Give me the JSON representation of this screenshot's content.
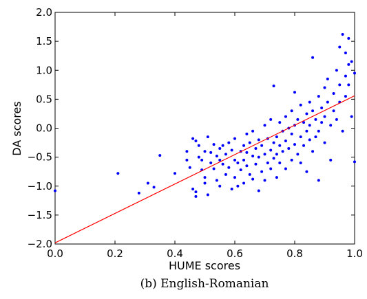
{
  "chart_data": {
    "type": "scatter",
    "title": "",
    "xlabel": "HUME scores",
    "ylabel": "DA scores",
    "caption": "(b) English-Romanian",
    "xlim": [
      0.0,
      1.0
    ],
    "ylim": [
      -2.0,
      2.0
    ],
    "xticks": [
      "0.0",
      "0.2",
      "0.4",
      "0.6",
      "0.8",
      "1.0"
    ],
    "yticks": [
      "−2.0",
      "−1.5",
      "−1.0",
      "−0.5",
      "0.0",
      "0.5",
      "1.0",
      "1.5",
      "2.0"
    ],
    "grid": false,
    "legend": "none",
    "colors": {
      "points": "#0000ff",
      "fit_line": "#ff0000"
    },
    "fit_line": {
      "x": [
        0.0,
        1.0
      ],
      "y": [
        -1.98,
        0.56
      ]
    },
    "series": [
      {
        "points": [
          [
            0.0,
            -1.08
          ],
          [
            0.21,
            -0.78
          ],
          [
            0.28,
            -1.12
          ],
          [
            0.31,
            -0.95
          ],
          [
            0.33,
            -1.02
          ],
          [
            0.35,
            -0.47
          ],
          [
            0.4,
            -0.78
          ],
          [
            0.44,
            -0.55
          ],
          [
            0.44,
            -0.4
          ],
          [
            0.45,
            -0.68
          ],
          [
            0.46,
            -1.05
          ],
          [
            0.46,
            -0.18
          ],
          [
            0.47,
            -0.22
          ],
          [
            0.47,
            -1.1
          ],
          [
            0.47,
            -1.18
          ],
          [
            0.48,
            -0.5
          ],
          [
            0.48,
            -0.3
          ],
          [
            0.49,
            -0.55
          ],
          [
            0.49,
            -0.72
          ],
          [
            0.5,
            -0.4
          ],
          [
            0.5,
            -0.85
          ],
          [
            0.5,
            -0.95
          ],
          [
            0.51,
            -1.15
          ],
          [
            0.51,
            -0.15
          ],
          [
            0.52,
            -0.6
          ],
          [
            0.52,
            -0.42
          ],
          [
            0.53,
            -0.28
          ],
          [
            0.53,
            -0.7
          ],
          [
            0.54,
            -0.48
          ],
          [
            0.54,
            -0.9
          ],
          [
            0.55,
            -0.35
          ],
          [
            0.55,
            -1.0
          ],
          [
            0.55,
            -0.55
          ],
          [
            0.56,
            -0.3
          ],
          [
            0.56,
            -0.62
          ],
          [
            0.57,
            -0.8
          ],
          [
            0.57,
            -0.45
          ],
          [
            0.58,
            -0.25
          ],
          [
            0.58,
            -0.68
          ],
          [
            0.59,
            -1.05
          ],
          [
            0.59,
            -0.38
          ],
          [
            0.6,
            -0.55
          ],
          [
            0.6,
            -0.18
          ],
          [
            0.6,
            -0.85
          ],
          [
            0.61,
            -0.6
          ],
          [
            0.61,
            -1.0
          ],
          [
            0.62,
            -0.4
          ],
          [
            0.62,
            -0.72
          ],
          [
            0.63,
            -0.3
          ],
          [
            0.63,
            -0.55
          ],
          [
            0.63,
            -0.95
          ],
          [
            0.64,
            -0.1
          ],
          [
            0.64,
            -0.42
          ],
          [
            0.64,
            -0.65
          ],
          [
            0.65,
            -0.25
          ],
          [
            0.65,
            -0.8
          ],
          [
            0.66,
            -0.48
          ],
          [
            0.66,
            -0.05
          ],
          [
            0.66,
            -0.88
          ],
          [
            0.67,
            -0.35
          ],
          [
            0.67,
            -0.62
          ],
          [
            0.68,
            -0.2
          ],
          [
            0.68,
            -0.5
          ],
          [
            0.68,
            -1.08
          ],
          [
            0.69,
            -0.75
          ],
          [
            0.69,
            -0.3
          ],
          [
            0.7,
            -0.45
          ],
          [
            0.7,
            0.05
          ],
          [
            0.7,
            -0.9
          ],
          [
            0.71,
            -0.6
          ],
          [
            0.71,
            -0.18
          ],
          [
            0.72,
            -0.38
          ],
          [
            0.72,
            0.15
          ],
          [
            0.72,
            -0.7
          ],
          [
            0.73,
            -0.25
          ],
          [
            0.73,
            -0.52
          ],
          [
            0.73,
            0.73
          ],
          [
            0.74,
            -0.15
          ],
          [
            0.74,
            -0.45
          ],
          [
            0.74,
            -0.85
          ],
          [
            0.75,
            0.1
          ],
          [
            0.75,
            -0.3
          ],
          [
            0.75,
            -0.6
          ],
          [
            0.76,
            -0.05
          ],
          [
            0.76,
            -0.4
          ],
          [
            0.77,
            0.2
          ],
          [
            0.77,
            -0.22
          ],
          [
            0.77,
            -0.7
          ],
          [
            0.78,
            0.0
          ],
          [
            0.78,
            -0.35
          ],
          [
            0.79,
            0.3
          ],
          [
            0.79,
            -0.1
          ],
          [
            0.79,
            -0.55
          ],
          [
            0.8,
            0.05
          ],
          [
            0.8,
            -0.28
          ],
          [
            0.8,
            0.62
          ],
          [
            0.81,
            -0.45
          ],
          [
            0.81,
            0.15
          ],
          [
            0.82,
            -0.15
          ],
          [
            0.82,
            0.4
          ],
          [
            0.82,
            -0.6
          ],
          [
            0.83,
            0.1
          ],
          [
            0.83,
            -0.3
          ],
          [
            0.84,
            0.25
          ],
          [
            0.84,
            -0.05
          ],
          [
            0.84,
            -0.75
          ],
          [
            0.85,
            0.45
          ],
          [
            0.85,
            -0.2
          ],
          [
            0.85,
            0.05
          ],
          [
            0.86,
            0.3
          ],
          [
            0.86,
            -0.4
          ],
          [
            0.86,
            1.22
          ],
          [
            0.87,
            0.15
          ],
          [
            0.87,
            -0.15
          ],
          [
            0.88,
            0.55
          ],
          [
            0.88,
            -0.05
          ],
          [
            0.88,
            -0.9
          ],
          [
            0.89,
            0.35
          ],
          [
            0.89,
            0.1
          ],
          [
            0.9,
            0.7
          ],
          [
            0.9,
            -0.25
          ],
          [
            0.9,
            0.2
          ],
          [
            0.91,
            0.85
          ],
          [
            0.91,
            0.45
          ],
          [
            0.92,
            0.05
          ],
          [
            0.92,
            -0.55
          ],
          [
            0.93,
            0.6
          ],
          [
            0.93,
            0.3
          ],
          [
            0.94,
            1.0
          ],
          [
            0.94,
            0.15
          ],
          [
            0.95,
            1.4
          ],
          [
            0.95,
            0.75
          ],
          [
            0.95,
            0.45
          ],
          [
            0.96,
            1.62
          ],
          [
            0.96,
            -0.05
          ],
          [
            0.97,
            1.3
          ],
          [
            0.97,
            0.9
          ],
          [
            0.97,
            0.55
          ],
          [
            0.98,
            1.55
          ],
          [
            0.98,
            1.1
          ],
          [
            0.98,
            0.75
          ],
          [
            0.99,
            1.15
          ],
          [
            0.99,
            0.2
          ],
          [
            1.0,
            -0.58
          ],
          [
            1.0,
            0.95
          ]
        ]
      }
    ]
  }
}
